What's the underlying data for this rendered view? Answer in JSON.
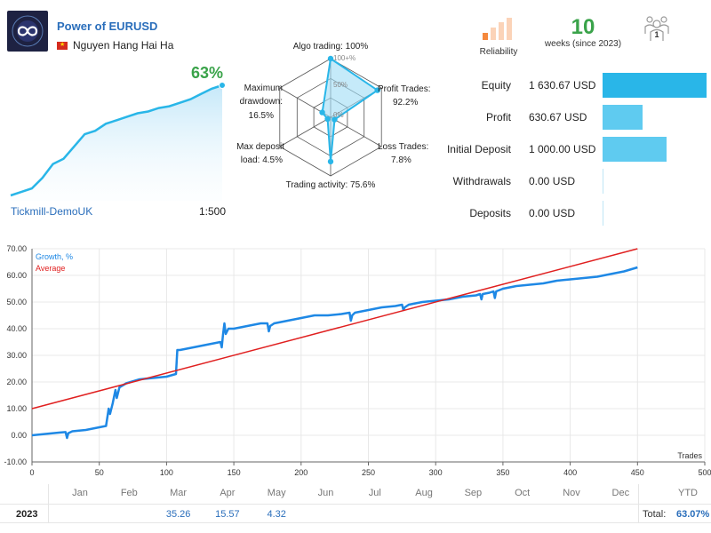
{
  "header": {
    "title": "Power of EURUSD",
    "author": "Nguyen Hang Hai Ha"
  },
  "summary": {
    "growth_pct": "63%",
    "broker": "Tickmill-DemoUK",
    "leverage": "1:500",
    "growth_series": [
      0,
      2,
      4,
      10,
      18,
      21,
      28,
      35,
      37,
      41,
      43,
      45,
      47,
      48,
      50,
      51,
      53,
      55,
      58,
      61,
      63
    ]
  },
  "radar": {
    "items": [
      {
        "label1": "Algo trading: 100%",
        "label2": "",
        "value": 100
      },
      {
        "label1": "Profit Trades:",
        "label2": "92.2%",
        "value": 92.2
      },
      {
        "label1": "Loss Trades:",
        "label2": "7.8%",
        "value": 7.8
      },
      {
        "label1": "Trading activity: 75.6%",
        "label2": "",
        "value": 75.6
      },
      {
        "label1": "Max deposit",
        "label2": "load: 4.5%",
        "value": 4.5
      },
      {
        "label1": "Maximum",
        "label2": "drawdown:",
        "label3": "16.5%",
        "value": 16.5
      }
    ],
    "ring_labels": [
      "100+%",
      "50%",
      "0%"
    ]
  },
  "reliability": {
    "label": "Reliability",
    "bars_active": 1,
    "bars_total": 4,
    "active_color": "#f5893d",
    "inactive_color": "#fbd3b8"
  },
  "weeks": {
    "count": "10",
    "label": "weeks (since 2023)"
  },
  "team_badge": "1",
  "stats": [
    {
      "label": "Equity",
      "value": "1 630.67 USD",
      "amount": 1630.67,
      "color": "#29b6e8"
    },
    {
      "label": "Profit",
      "value": "630.67 USD",
      "amount": 630.67,
      "color": "#5fcbf0"
    },
    {
      "label": "Initial Deposit",
      "value": "1 000.00 USD",
      "amount": 1000,
      "color": "#5fcbf0"
    },
    {
      "label": "Withdrawals",
      "value": "0.00 USD",
      "amount": 0,
      "color": "#5fcbf0"
    },
    {
      "label": "Deposits",
      "value": "0.00 USD",
      "amount": 0,
      "color": "#5fcbf0"
    }
  ],
  "chart_data": {
    "type": "line",
    "xlabel": "Trades",
    "ylabel": "",
    "xlim": [
      0,
      500
    ],
    "ylim": [
      -10,
      70
    ],
    "x_ticks": [
      0,
      50,
      100,
      150,
      200,
      250,
      300,
      350,
      400,
      450,
      500
    ],
    "y_ticks": [
      "-10.00",
      "0.00",
      "10.00",
      "20.00",
      "30.00",
      "40.00",
      "50.00",
      "60.00",
      "70.00"
    ],
    "legend_position": "top-left",
    "series": [
      {
        "name": "Growth, %",
        "color": "#1e88e5",
        "x": [
          0,
          10,
          20,
          25,
          26,
          27,
          30,
          40,
          50,
          55,
          57,
          58,
          60,
          62,
          63,
          65,
          70,
          80,
          90,
          100,
          107,
          108,
          110,
          120,
          130,
          140,
          141,
          142,
          143,
          144,
          146,
          150,
          160,
          170,
          175,
          176,
          177,
          180,
          190,
          200,
          210,
          220,
          230,
          236,
          237,
          238,
          240,
          250,
          260,
          270,
          275,
          276,
          277,
          280,
          290,
          300,
          310,
          320,
          330,
          333,
          334,
          335,
          340,
          343,
          344,
          345,
          350,
          360,
          370,
          380,
          390,
          400,
          410,
          420,
          430,
          440,
          450
        ],
        "y": [
          0,
          0.5,
          1,
          1.2,
          -1,
          0.8,
          1.5,
          2,
          3,
          3.5,
          10,
          8,
          12,
          17,
          14,
          18,
          19.5,
          21,
          21.5,
          22,
          23,
          32,
          32,
          33,
          34,
          35,
          33,
          38,
          42,
          38,
          40,
          40,
          41,
          42,
          42,
          39,
          41,
          42,
          43,
          44,
          45,
          45,
          45.5,
          46,
          43,
          45,
          46,
          47,
          48,
          48.5,
          49,
          47,
          48,
          49,
          50,
          50.5,
          51,
          52,
          52.5,
          53,
          51,
          53,
          53.5,
          54,
          51.5,
          54,
          55,
          56,
          56.5,
          57,
          58,
          58.5,
          59,
          59.5,
          60.5,
          61.5,
          63
        ]
      },
      {
        "name": "Average",
        "color": "#e02020",
        "x": [
          0,
          450
        ],
        "y": [
          10,
          70
        ]
      }
    ]
  },
  "monthly": {
    "months": [
      "Jan",
      "Feb",
      "Mar",
      "Apr",
      "May",
      "Jun",
      "Jul",
      "Aug",
      "Sep",
      "Oct",
      "Nov",
      "Dec"
    ],
    "ytd_label": "YTD",
    "year": "2023",
    "values": [
      "",
      "",
      "35.26",
      "15.57",
      "4.32",
      "",
      "",
      "",
      "",
      "",
      "",
      ""
    ],
    "total_label": "Total:",
    "total_value": "63.07%"
  }
}
